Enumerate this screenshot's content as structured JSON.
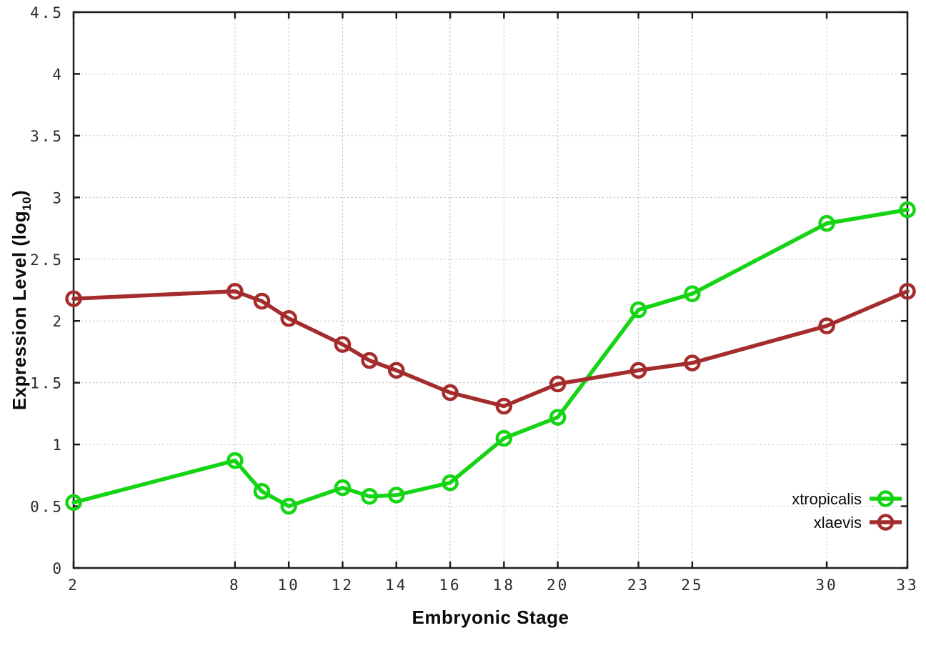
{
  "chart_data": {
    "type": "line",
    "title": "",
    "xlabel": "Embryonic Stage",
    "ylabel": "Expression Level (log10)",
    "ylabel_parts": {
      "prefix": "Expression Level (log",
      "sub": "10",
      "suffix": ")"
    },
    "xlim": [
      2,
      33
    ],
    "ylim": [
      0,
      4.5
    ],
    "x_ticks": [
      2,
      8,
      10,
      12,
      14,
      16,
      18,
      20,
      23,
      25,
      30,
      33
    ],
    "y_ticks": [
      0,
      0.5,
      1,
      1.5,
      2,
      2.5,
      3,
      3.5,
      4,
      4.5
    ],
    "grid": true,
    "grid_style": "dotted",
    "legend": {
      "position": "inside-bottom-right",
      "entries": [
        "xtropicalis",
        "xlaevis"
      ]
    },
    "x": [
      2,
      8,
      9,
      10,
      12,
      13,
      14,
      16,
      18,
      20,
      23,
      25,
      30,
      33
    ],
    "series": [
      {
        "name": "xtropicalis",
        "color": "#14d414",
        "marker": "open-circle",
        "values": [
          0.53,
          0.87,
          0.62,
          0.5,
          0.65,
          0.58,
          0.59,
          0.69,
          1.05,
          1.22,
          2.09,
          2.22,
          2.79,
          2.9
        ]
      },
      {
        "name": "xlaevis",
        "color": "#a42c2c",
        "marker": "open-circle",
        "values": [
          2.18,
          2.24,
          2.16,
          2.02,
          1.81,
          1.68,
          1.6,
          1.42,
          1.31,
          1.49,
          1.6,
          1.66,
          1.96,
          2.24
        ]
      }
    ],
    "axis_color": "#1c1c1c",
    "grid_color": "#b5b5b5",
    "tick_label_color": "#2a2a2a",
    "background_color": "#ffffff"
  }
}
